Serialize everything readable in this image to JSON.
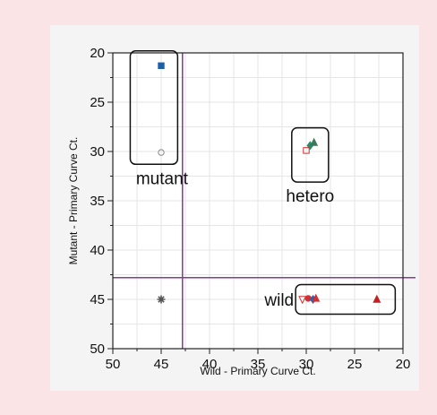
{
  "chart_data": {
    "type": "scatter",
    "xlabel": "Wild - Primary Curve Ct.",
    "ylabel": "Mutant - Primary Curve Ct.",
    "xlim": [
      50,
      20
    ],
    "ylim": [
      20,
      50
    ],
    "x_reversed": true,
    "y_reversed": true,
    "x_ticks": [
      "50",
      "45",
      "40",
      "35",
      "30",
      "25",
      "20"
    ],
    "y_ticks": [
      "20",
      "25",
      "30",
      "35",
      "40",
      "45",
      "50"
    ],
    "cutoff_lines": {
      "x": 42.8,
      "y": 42.8,
      "color": "#8a3a9a"
    },
    "grid": true,
    "groups": [
      {
        "label": "mutant",
        "box": {
          "x": [
            48.2,
            43.3
          ],
          "y": [
            19.8,
            31.3
          ]
        }
      },
      {
        "label": "hetero",
        "box": {
          "x": [
            31.5,
            27.7
          ],
          "y": [
            27.6,
            33.1
          ]
        }
      },
      {
        "label": "wild",
        "box": {
          "x": [
            31.1,
            20.8
          ],
          "y": [
            43.5,
            46.5
          ]
        }
      }
    ],
    "points": [
      {
        "x": 45.0,
        "y": 21.3,
        "marker": "square",
        "color": "#1f5fa8"
      },
      {
        "x": 45.0,
        "y": 30.1,
        "marker": "circle-open",
        "color": "#888888"
      },
      {
        "x": 29.6,
        "y": 29.4,
        "marker": "diamond",
        "color": "#2a8a6a"
      },
      {
        "x": 29.2,
        "y": 29.1,
        "marker": "triangle",
        "color": "#3a7a5a"
      },
      {
        "x": 30.0,
        "y": 29.9,
        "marker": "square-open",
        "color": "#d03030"
      },
      {
        "x": 45.0,
        "y": 45.0,
        "marker": "star",
        "color": "#555555"
      },
      {
        "x": 30.4,
        "y": 45.0,
        "marker": "triangle-down-open",
        "color": "#d03030"
      },
      {
        "x": 29.8,
        "y": 44.9,
        "marker": "circle",
        "color": "#d03030"
      },
      {
        "x": 29.3,
        "y": 45.0,
        "marker": "diamond",
        "color": "#3060b0"
      },
      {
        "x": 29.0,
        "y": 44.9,
        "marker": "triangle",
        "color": "#d03030"
      },
      {
        "x": 22.7,
        "y": 45.0,
        "marker": "triangle",
        "color": "#c02020"
      }
    ]
  }
}
